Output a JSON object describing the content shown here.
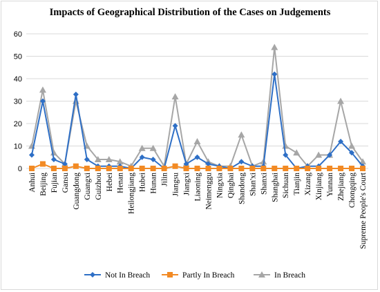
{
  "chart_data": {
    "type": "line",
    "title": "Impacts of Geographical Distribution of the Cases on Judgements",
    "xlabel": "",
    "ylabel": "",
    "ylim": [
      0,
      60
    ],
    "yticks": [
      0,
      10,
      20,
      30,
      40,
      50,
      60
    ],
    "grid": true,
    "legend_position": "bottom",
    "categories": [
      "Anhui",
      "Beijing",
      "Fujian",
      "Gansu",
      "Guangdong",
      "Guangxi",
      "Guizhou",
      "Hebei",
      "Henan",
      "Heilongjiang",
      "Hubei",
      "Hunan",
      "Jilin",
      "Jiangsu",
      "Jiangxi",
      "Liaoning",
      "Neimenggu",
      "Ningxia",
      "Qinghai",
      "Shandong",
      "Shan'xi",
      "Shanxi",
      "Shanghai",
      "Sichuan",
      "Tianjin",
      "Xizang",
      "Xinjiang",
      "Yunnan",
      "Zhejiang",
      "Chongqing",
      "Supreme People's Court"
    ],
    "series": [
      {
        "name": "Not In Breach",
        "color": "#2e6fc6",
        "marker": "diamond",
        "values": [
          6,
          30,
          4,
          2,
          33,
          4,
          1,
          1,
          1,
          0,
          5,
          4,
          0,
          19,
          2,
          5,
          2,
          1,
          0,
          3,
          1,
          1,
          42,
          6,
          0,
          1,
          1,
          6,
          12,
          7,
          1
        ]
      },
      {
        "name": "Partly In Breach",
        "color": "#f28a24",
        "marker": "square",
        "values": [
          0,
          2,
          0,
          0,
          1,
          0,
          0,
          0,
          0,
          0,
          0,
          0,
          0,
          1,
          0,
          0,
          0,
          0,
          0,
          0,
          0,
          0,
          0,
          0,
          0,
          0,
          0,
          0,
          0,
          0,
          0
        ]
      },
      {
        "name": "In Breach",
        "color": "#a6a6a6",
        "marker": "triangle",
        "values": [
          10,
          35,
          7,
          2,
          30,
          10,
          4,
          4,
          3,
          1,
          9,
          9,
          1,
          32,
          2,
          12,
          3,
          1,
          1,
          15,
          1,
          3,
          54,
          10,
          7,
          1,
          6,
          6,
          30,
          10,
          3
        ]
      }
    ]
  }
}
